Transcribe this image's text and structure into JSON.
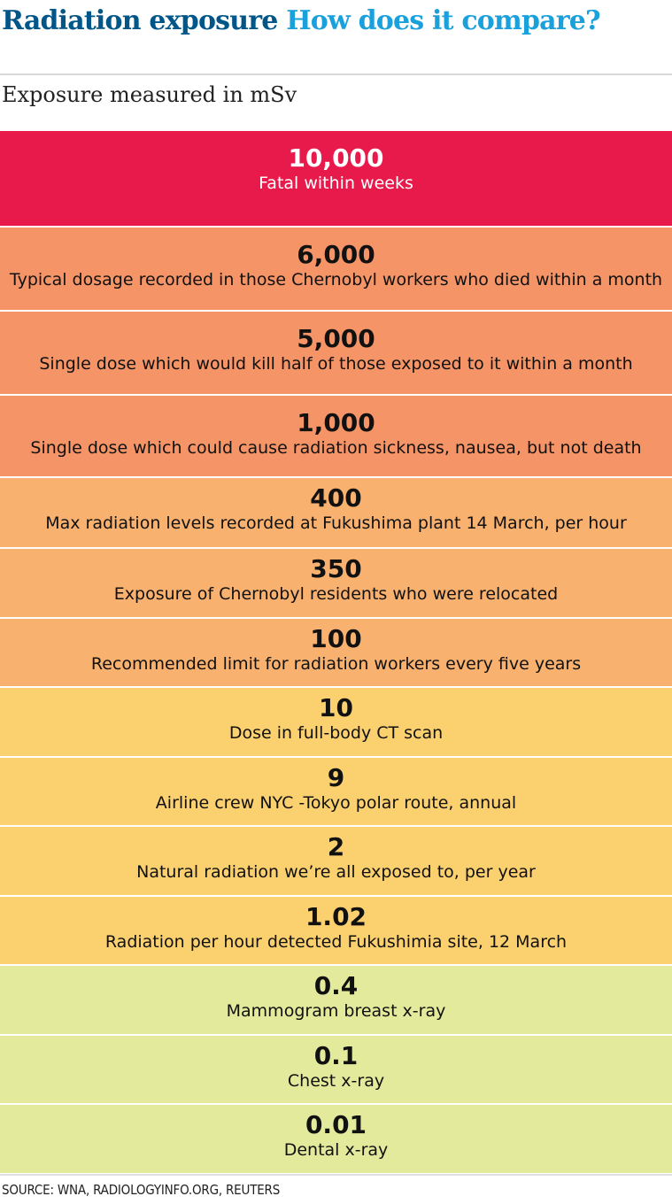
{
  "header": {
    "title_part1": "Radiation exposure",
    "title_part2": "How does it compare?",
    "subtitle": "Exposure measured in mSv"
  },
  "colors": {
    "title_dark": "#005689",
    "title_light": "#1aa1dc",
    "fatal": "#e8194b",
    "high": "#f59466",
    "medium": "#f8b16f",
    "low": "#fbd06f",
    "minimal": "#e3ea9b"
  },
  "chart_data": {
    "type": "table",
    "title": "Radiation exposure How does it compare?",
    "subtitle": "Exposure measured in mSv",
    "rows": [
      {
        "value": "10,000",
        "description": "Fatal within weeks",
        "level": "fatal"
      },
      {
        "value": "6,000",
        "description": "Typical dosage recorded in those Chernobyl workers who died within a month",
        "level": "high"
      },
      {
        "value": "5,000",
        "description": "Single dose which would kill half of those exposed to it within a month",
        "level": "high"
      },
      {
        "value": "1,000",
        "description": "Single dose which could cause radiation sickness, nausea, but not death",
        "level": "high"
      },
      {
        "value": "400",
        "description": "Max radiation levels recorded at Fukushima plant 14 March, per hour",
        "level": "medium"
      },
      {
        "value": "350",
        "description": "Exposure of Chernobyl residents who were relocated",
        "level": "medium"
      },
      {
        "value": "100",
        "description": "Recommended limit for radiation workers every five years",
        "level": "medium"
      },
      {
        "value": "10",
        "description": "Dose in full-body CT scan",
        "level": "low"
      },
      {
        "value": "9",
        "description": "Airline crew NYC -Tokyo polar route, annual",
        "level": "low"
      },
      {
        "value": "2",
        "description": "Natural radiation we’re all exposed to, per year",
        "level": "low"
      },
      {
        "value": "1.02",
        "description": "Radiation per hour detected Fukushimia site, 12 March",
        "level": "low"
      },
      {
        "value": "0.4",
        "description": "Mammogram breast x-ray",
        "level": "minimal"
      },
      {
        "value": "0.1",
        "description": "Chest x-ray",
        "level": "minimal"
      },
      {
        "value": "0.01",
        "description": "Dental x-ray",
        "level": "minimal"
      }
    ]
  },
  "footer": {
    "source": "SOURCE: WNA, RADIOLOGYINFO.ORG, REUTERS"
  }
}
